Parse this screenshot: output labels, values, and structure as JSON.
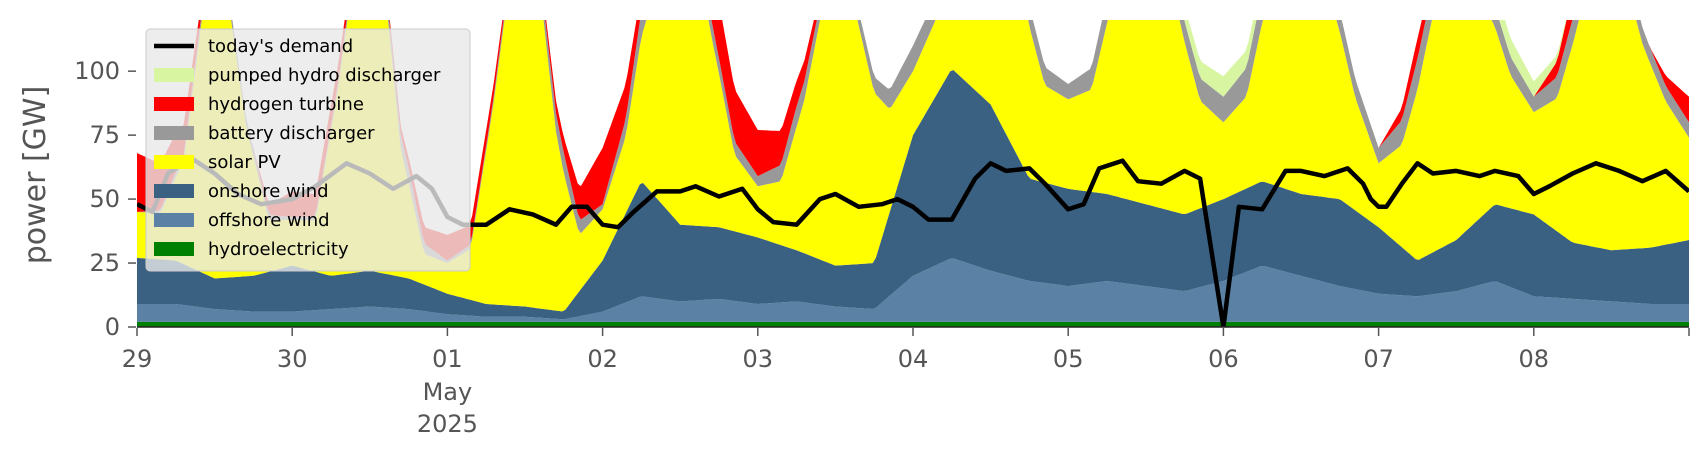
{
  "chart_data": {
    "type": "area",
    "title": "",
    "xlabel": "",
    "ylabel": "power [GW]",
    "ylim": [
      0,
      120
    ],
    "y_ticks": [
      0,
      25,
      50,
      75,
      100
    ],
    "y_tick_labels": [
      "0",
      "25",
      "50",
      "75",
      "100"
    ],
    "x_range_days": [
      0,
      10
    ],
    "x_ticks": [
      {
        "day": 0,
        "label": "29"
      },
      {
        "day": 1,
        "label": "30"
      },
      {
        "day": 2,
        "label": "01",
        "sub1": "May",
        "sub2": "2025"
      },
      {
        "day": 3,
        "label": "02"
      },
      {
        "day": 4,
        "label": "03"
      },
      {
        "day": 5,
        "label": "04"
      },
      {
        "day": 6,
        "label": "05"
      },
      {
        "day": 7,
        "label": "06"
      },
      {
        "day": 8,
        "label": "07"
      },
      {
        "day": 9,
        "label": "08"
      }
    ],
    "legend_position": "top-left",
    "legend": [
      {
        "key": "demand",
        "label": "today's demand",
        "kind": "line",
        "color": "#000000"
      },
      {
        "key": "pumped",
        "label": "pumped hydro discharger",
        "kind": "patch",
        "color": "#d8f5a2"
      },
      {
        "key": "hydrogen",
        "label": "hydrogen turbine",
        "kind": "patch",
        "color": "#ff0000"
      },
      {
        "key": "battery",
        "label": "battery discharger",
        "kind": "patch",
        "color": "#999999"
      },
      {
        "key": "solar",
        "label": "solar PV",
        "kind": "patch",
        "color": "#ffff00"
      },
      {
        "key": "onwind",
        "label": "onshore wind",
        "kind": "patch",
        "color": "#3b6182"
      },
      {
        "key": "offwind",
        "label": "offshore wind",
        "kind": "patch",
        "color": "#5b82a5"
      },
      {
        "key": "hydro",
        "label": "hydroelectricity",
        "kind": "patch",
        "color": "#008000"
      }
    ],
    "series_order": [
      "hydro",
      "offwind",
      "onwind",
      "solar",
      "battery",
      "hydrogen",
      "pumped"
    ],
    "series": [
      {
        "key": "hydro",
        "color": "#008000",
        "x": [
          0,
          10
        ],
        "y": [
          2,
          2
        ]
      },
      {
        "key": "offwind",
        "color": "#5b82a5",
        "x": [
          0,
          0.25,
          0.5,
          0.75,
          1,
          1.25,
          1.5,
          1.75,
          2,
          2.25,
          2.5,
          2.75,
          3,
          3.25,
          3.5,
          3.75,
          4,
          4.25,
          4.5,
          4.75,
          5,
          5.25,
          5.5,
          5.75,
          6,
          6.25,
          6.5,
          6.75,
          7,
          7.25,
          7.5,
          7.75,
          8,
          8.25,
          8.5,
          8.75,
          9,
          9.25,
          9.5,
          9.75,
          10
        ],
        "y": [
          7,
          7,
          5,
          4,
          4,
          5,
          6,
          5,
          3,
          2,
          2,
          1,
          4,
          10,
          8,
          9,
          7,
          8,
          6,
          5,
          18,
          25,
          20,
          16,
          14,
          16,
          14,
          12,
          16,
          22,
          18,
          14,
          11,
          10,
          12,
          16,
          10,
          9,
          8,
          7,
          7
        ]
      },
      {
        "key": "onwind",
        "color": "#3b6182",
        "x": [
          0,
          0.25,
          0.5,
          0.75,
          1,
          1.25,
          1.5,
          1.75,
          2,
          2.25,
          2.5,
          2.75,
          3,
          3.25,
          3.5,
          3.75,
          4,
          4.25,
          4.5,
          4.75,
          5,
          5.25,
          5.5,
          5.75,
          6,
          6.25,
          6.5,
          6.75,
          7,
          7.25,
          7.5,
          7.75,
          8,
          8.25,
          8.5,
          8.75,
          9,
          9.25,
          9.5,
          9.75,
          10
        ],
        "y": [
          18,
          17,
          12,
          14,
          18,
          13,
          14,
          12,
          8,
          5,
          4,
          3,
          20,
          45,
          30,
          28,
          26,
          20,
          16,
          18,
          55,
          74,
          65,
          40,
          38,
          34,
          32,
          30,
          32,
          33,
          32,
          34,
          26,
          14,
          20,
          30,
          32,
          22,
          20,
          22,
          25
        ]
      },
      {
        "key": "solar",
        "color": "#ffff00",
        "x": [
          0,
          0.15,
          0.3,
          0.45,
          0.55,
          0.7,
          0.85,
          1,
          1.15,
          1.3,
          1.45,
          1.55,
          1.7,
          1.85,
          2,
          2.15,
          2.3,
          2.45,
          2.55,
          2.7,
          2.85,
          3,
          3.15,
          3.3,
          3.45,
          3.55,
          3.7,
          3.85,
          4,
          4.15,
          4.3,
          4.45,
          4.55,
          4.7,
          4.85,
          5,
          5.15,
          5.3,
          5.45,
          5.55,
          5.7,
          5.85,
          6,
          6.15,
          6.3,
          6.45,
          6.55,
          6.7,
          6.85,
          7,
          7.15,
          7.3,
          7.45,
          7.55,
          7.7,
          7.85,
          8,
          8.15,
          8.3,
          8.45,
          8.55,
          8.7,
          8.85,
          9,
          9.15,
          9.3,
          9.45,
          9.55,
          9.7,
          9.85,
          10
        ],
        "y": [
          18,
          18,
          40,
          115,
          125,
          60,
          20,
          18,
          20,
          75,
          140,
          140,
          50,
          12,
          12,
          20,
          80,
          150,
          150,
          70,
          22,
          20,
          30,
          70,
          130,
          125,
          75,
          30,
          20,
          25,
          60,
          110,
          120,
          80,
          40,
          25,
          30,
          70,
          115,
          118,
          70,
          38,
          35,
          40,
          80,
          130,
          128,
          80,
          42,
          30,
          36,
          75,
          120,
          118,
          76,
          44,
          25,
          40,
          80,
          118,
          112,
          78,
          52,
          40,
          52,
          90,
          118,
          115,
          80,
          56,
          40
        ]
      },
      {
        "key": "battery",
        "color": "#999999",
        "x": [
          0,
          0.25,
          0.5,
          0.75,
          1,
          1.25,
          1.5,
          1.75,
          2,
          2.25,
          2.5,
          2.75,
          3,
          3.25,
          3.5,
          3.75,
          4,
          4.25,
          4.5,
          4.75,
          5,
          5.25,
          5.5,
          5.75,
          6,
          6.25,
          6.5,
          6.75,
          7,
          7.25,
          7.5,
          7.75,
          8,
          8.25,
          8.5,
          8.75,
          9,
          9.25,
          9.5,
          9.75,
          10
        ],
        "y": [
          0,
          2,
          4,
          3,
          1,
          2,
          4,
          6,
          1,
          2,
          4,
          8,
          2,
          10,
          8,
          6,
          4,
          8,
          5,
          6,
          10,
          8,
          6,
          8,
          6,
          10,
          10,
          8,
          10,
          12,
          10,
          8,
          6,
          12,
          10,
          8,
          6,
          10,
          8,
          6,
          6
        ]
      },
      {
        "key": "hydrogen",
        "color": "#ff0000",
        "x": [
          0,
          0.25,
          0.5,
          0.75,
          1,
          1.25,
          1.5,
          1.75,
          2,
          2.25,
          2.5,
          2.75,
          3,
          3.25,
          3.5,
          3.75,
          4,
          4.25,
          4.5,
          4.75,
          5,
          5.25,
          5.5,
          5.75,
          6,
          6.25,
          6.5,
          6.75,
          7,
          7.25,
          7.5,
          7.75,
          8,
          8.25,
          8.5,
          8.75,
          9,
          9.25,
          9.5,
          9.75,
          10
        ],
        "y": [
          23,
          15,
          0,
          0,
          10,
          8,
          0,
          4,
          10,
          6,
          0,
          6,
          22,
          8,
          26,
          22,
          18,
          10,
          0,
          0,
          0,
          0,
          0,
          0,
          0,
          0,
          0,
          0,
          0,
          0,
          0,
          0,
          0,
          8,
          0,
          0,
          0,
          10,
          0,
          0,
          10
        ]
      },
      {
        "key": "pumped",
        "color": "#d8f5a2",
        "x": [
          0,
          0.25,
          0.5,
          0.75,
          1,
          1.25,
          1.5,
          1.75,
          2,
          2.25,
          2.5,
          2.75,
          3,
          3.25,
          3.5,
          3.75,
          4,
          4.25,
          4.5,
          4.75,
          5,
          5.25,
          5.5,
          5.75,
          6,
          6.25,
          6.5,
          6.75,
          7,
          7.25,
          7.5,
          7.75,
          8,
          8.25,
          8.5,
          8.75,
          9,
          9.25,
          9.5,
          9.75,
          10
        ],
        "y": [
          0,
          0,
          0,
          0,
          0,
          0,
          0,
          0,
          0,
          0,
          0,
          0,
          0,
          0,
          0,
          0,
          0,
          0,
          0,
          0,
          0,
          0,
          0,
          0,
          0,
          0,
          0,
          6,
          8,
          6,
          0,
          0,
          0,
          0,
          0,
          8,
          6,
          0,
          0,
          0,
          0
        ]
      }
    ],
    "demand": {
      "x": [
        0,
        0.1,
        0.2,
        0.35,
        0.5,
        0.65,
        0.8,
        1,
        1.15,
        1.35,
        1.5,
        1.65,
        1.8,
        1.9,
        2,
        2.1,
        2.25,
        2.4,
        2.55,
        2.7,
        2.8,
        2.9,
        3,
        3.1,
        3.2,
        3.35,
        3.5,
        3.6,
        3.75,
        3.9,
        4,
        4.1,
        4.25,
        4.4,
        4.5,
        4.65,
        4.8,
        4.9,
        5,
        5.1,
        5.25,
        5.4,
        5.5,
        5.6,
        5.75,
        5.85,
        6,
        6.1,
        6.2,
        6.35,
        6.45,
        6.6,
        6.75,
        6.85,
        7,
        7.1,
        7.25,
        7.4,
        7.5,
        7.65,
        7.8,
        7.9,
        7.95,
        8,
        8.05,
        8.15,
        8.25,
        8.35,
        8.5,
        8.65,
        8.75,
        8.9,
        9,
        9.1,
        9.25,
        9.4,
        9.55,
        9.7,
        9.85,
        10
      ],
      "y": [
        48,
        45,
        60,
        66,
        60,
        52,
        48,
        50,
        55,
        64,
        60,
        54,
        59,
        54,
        43,
        40,
        40,
        46,
        44,
        40,
        47,
        47,
        40,
        39,
        45,
        53,
        53,
        55,
        51,
        54,
        46,
        41,
        40,
        50,
        52,
        47,
        48,
        50,
        47,
        42,
        42,
        58,
        64,
        61,
        62,
        56,
        46,
        48,
        62,
        65,
        57,
        56,
        61,
        58,
        0,
        47,
        46,
        61,
        61,
        59,
        62,
        56,
        50,
        47,
        47,
        56,
        64,
        60,
        61,
        59,
        61,
        59,
        52,
        55,
        60,
        64,
        61,
        57,
        61,
        53
      ]
    }
  }
}
